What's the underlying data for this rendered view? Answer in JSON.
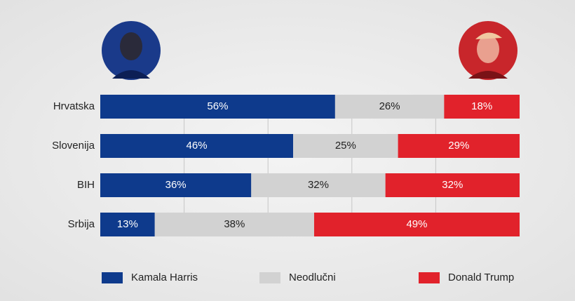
{
  "chart_data": {
    "type": "stacked-barh",
    "categories": [
      "Hrvatska",
      "Slovenija",
      "BIH",
      "Srbija"
    ],
    "series": [
      {
        "name": "Kamala Harris",
        "color": "#0e3a8c",
        "values": [
          56,
          46,
          36,
          13
        ],
        "value_labels": [
          "56%",
          "46%",
          "36%",
          "13%"
        ]
      },
      {
        "name": "Neodlučni",
        "color": "#d2d2d2",
        "values": [
          26,
          25,
          32,
          38
        ],
        "value_labels": [
          "26%",
          "25%",
          "32%",
          "38%"
        ]
      },
      {
        "name": "Donald Trump",
        "color": "#e1222b",
        "values": [
          18,
          29,
          32,
          49
        ],
        "value_labels": [
          "18%",
          "29%",
          "32%",
          "49%"
        ]
      }
    ],
    "xlim": [
      0,
      100
    ],
    "xticks": [
      20,
      40,
      60,
      80
    ],
    "grid": true,
    "legend": "bottom"
  }
}
